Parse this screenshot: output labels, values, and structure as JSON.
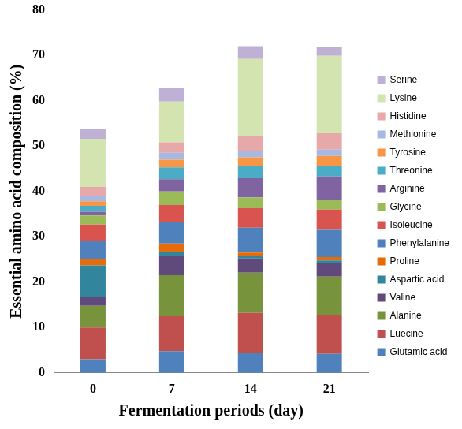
{
  "chart_data": {
    "type": "bar",
    "stacked": true,
    "x_label": "Fermentation periods (day)",
    "y_label": "Essential amino acid composition (%)",
    "categories": [
      "0",
      "7",
      "14",
      "21"
    ],
    "ylim": [
      0,
      80
    ],
    "yticks": [
      0,
      10,
      20,
      30,
      40,
      50,
      60,
      70,
      80
    ],
    "grid": false,
    "legend": "right",
    "series": [
      {
        "name": "Glutamic acid",
        "color": "#4f81bd",
        "values": [
          3.0,
          4.8,
          4.5,
          4.2
        ]
      },
      {
        "name": "Luecine",
        "color": "#c0504d",
        "values": [
          7.0,
          7.7,
          8.7,
          8.6
        ]
      },
      {
        "name": "Alanine",
        "color": "#77933c",
        "values": [
          4.8,
          9.0,
          8.9,
          8.4
        ]
      },
      {
        "name": "Valine",
        "color": "#604a7b",
        "values": [
          2.0,
          4.2,
          3.1,
          3.0
        ]
      },
      {
        "name": "Aspartic acid",
        "color": "#31859c",
        "values": [
          6.9,
          1.0,
          0.6,
          0.6
        ]
      },
      {
        "name": "Proline",
        "color": "#e46c0a",
        "values": [
          1.3,
          1.8,
          0.7,
          0.7
        ]
      },
      {
        "name": "Phenylalanine",
        "color": "#4f81bd",
        "values": [
          4.0,
          4.7,
          5.5,
          6.0
        ]
      },
      {
        "name": "Isoleucine",
        "color": "#d9534f",
        "values": [
          3.7,
          3.8,
          4.3,
          4.5
        ]
      },
      {
        "name": "Glycine",
        "color": "#9bbb59",
        "values": [
          2.0,
          3.0,
          2.4,
          2.2
        ]
      },
      {
        "name": "Arginine",
        "color": "#8064a2",
        "values": [
          0.8,
          2.7,
          4.2,
          5.1
        ]
      },
      {
        "name": "Threonine",
        "color": "#4bacc6",
        "values": [
          1.3,
          2.6,
          2.6,
          2.3
        ]
      },
      {
        "name": "Tyrosine",
        "color": "#f79646",
        "values": [
          1.0,
          1.7,
          2.0,
          2.2
        ]
      },
      {
        "name": "Methionine",
        "color": "#a7b9e0",
        "values": [
          1.2,
          1.5,
          1.5,
          1.4
        ]
      },
      {
        "name": "Histidine",
        "color": "#e6a8a8",
        "values": [
          2.0,
          2.3,
          3.2,
          3.6
        ]
      },
      {
        "name": "Lysine",
        "color": "#d3e4b0",
        "values": [
          10.6,
          9.0,
          17.0,
          17.1
        ]
      },
      {
        "name": "Serine",
        "color": "#bfb1d5",
        "values": [
          2.2,
          2.9,
          2.8,
          1.9
        ]
      }
    ]
  }
}
